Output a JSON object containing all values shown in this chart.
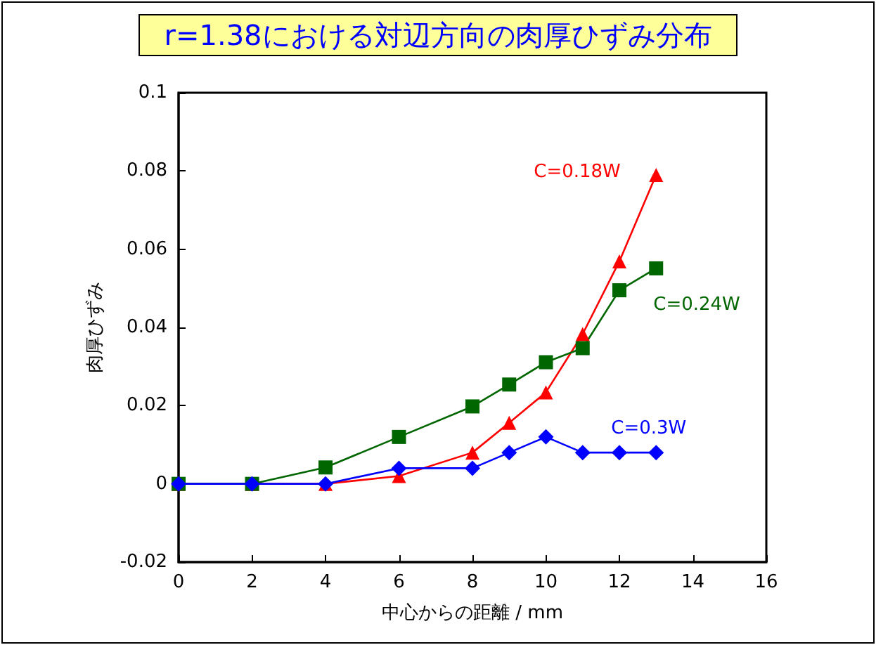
{
  "chart_data": {
    "type": "line",
    "title": "r=1.38における対辺方向の肉厚ひずみ分布",
    "xlabel": "中心からの距離 / mm",
    "ylabel": "肉厚ひずみ",
    "xlim": [
      0,
      16
    ],
    "xticks": [
      0,
      2,
      4,
      6,
      8,
      10,
      12,
      14,
      16
    ],
    "ylim": [
      -0.02,
      0.1
    ],
    "yticks": [
      -0.02,
      0,
      0.02,
      0.04,
      0.06,
      0.08,
      0.1
    ],
    "grid": false,
    "legend": false,
    "x": [
      0,
      2,
      4,
      6,
      8,
      9,
      10,
      11,
      12,
      13
    ],
    "series": [
      {
        "name": "C=0.18W",
        "color": "#ff0000",
        "marker": "triangle",
        "values": [
          0,
          0,
          0,
          0.002,
          0.008,
          0.0156,
          0.0234,
          0.0383,
          0.0569,
          0.079
        ]
      },
      {
        "name": "C=0.24W",
        "color": "#006600",
        "marker": "square",
        "values": [
          0,
          0,
          0.0042,
          0.012,
          0.0198,
          0.0254,
          0.0311,
          0.0347,
          0.0495,
          0.0551
        ]
      },
      {
        "name": "C=0.3W",
        "color": "#0000ff",
        "marker": "diamond",
        "values": [
          0,
          0,
          0,
          0.004,
          0.004,
          0.008,
          0.012,
          0.008,
          0.008,
          0.008
        ]
      }
    ]
  }
}
